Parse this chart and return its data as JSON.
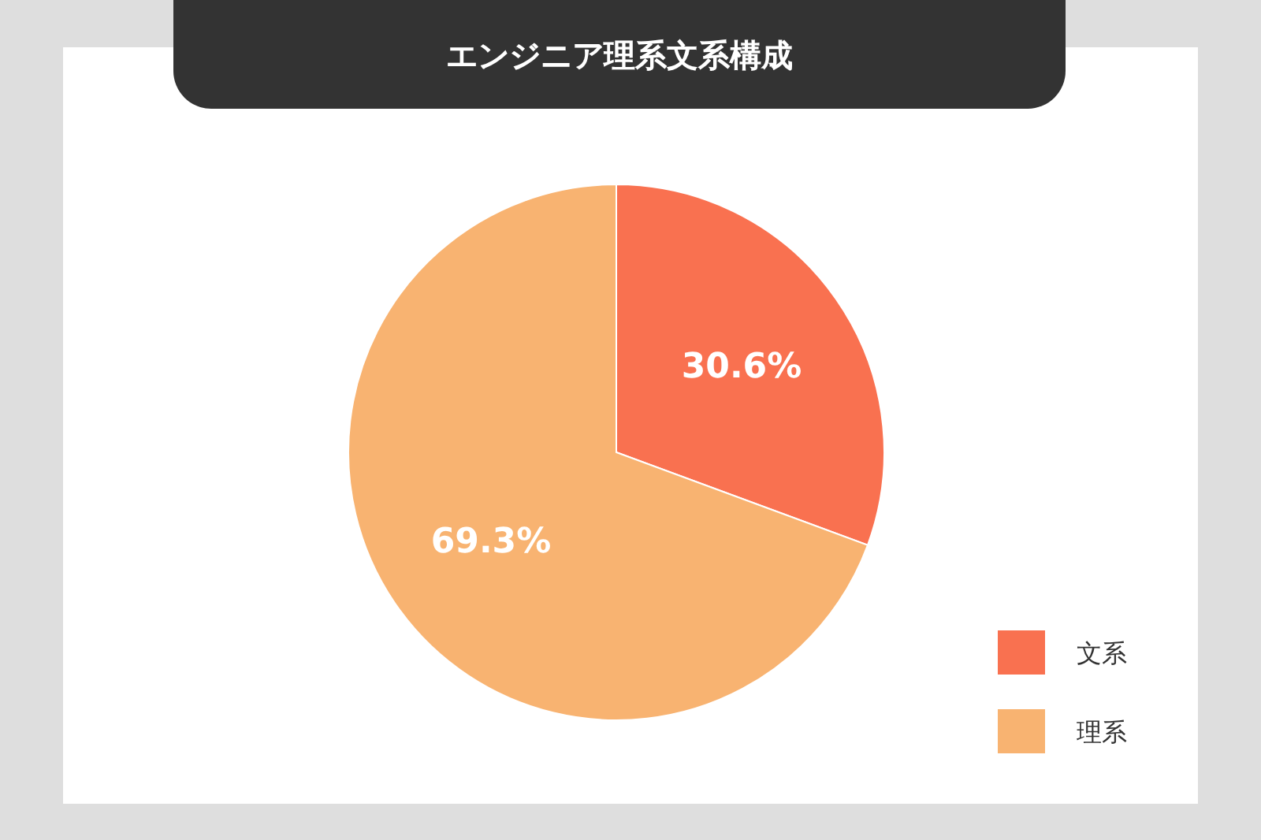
{
  "chart_data": {
    "type": "pie",
    "title": "エンジニア理系文系構成",
    "categories": [
      "文系",
      "理系"
    ],
    "values": [
      30.6,
      69.3
    ],
    "colors": [
      "#f97150",
      "#f8b371"
    ],
    "value_labels": [
      "30.6%",
      "69.3%"
    ],
    "legend": "bottom right"
  }
}
